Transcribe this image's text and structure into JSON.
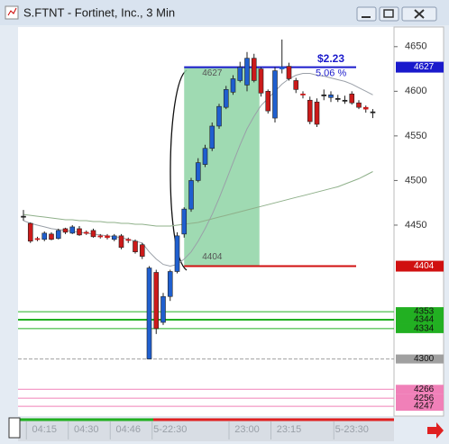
{
  "window_title": "S.FTNT - Fortinet, Inc., 3 Min",
  "chart_data": {
    "type": "candlestick",
    "categories": [
      null,
      null,
      null,
      "04:15",
      null,
      null,
      null,
      null,
      null,
      "04:30",
      null,
      null,
      null,
      null,
      null,
      "04:46",
      null,
      null,
      null,
      null,
      null,
      "5-22:30",
      null,
      null,
      null,
      null,
      null,
      null,
      null,
      null,
      null,
      null,
      "23:00",
      null,
      null,
      null,
      null,
      null,
      "23:15",
      null,
      null,
      null,
      null,
      null,
      null,
      null,
      null,
      "5-23:30",
      null,
      null,
      null
    ],
    "open": [
      4460,
      4452,
      4435,
      4434,
      4440,
      4435,
      4446,
      4441,
      4446,
      4442,
      4444,
      4438,
      4438,
      4434,
      4438,
      4434,
      4432,
      4428,
      4300,
      4397,
      4341,
      4370,
      4398,
      4440,
      4468,
      4500,
      4518,
      4536,
      4561,
      4582,
      4599,
      4612,
      4607,
      4637,
      4625,
      4600,
      4570,
      4625,
      4628,
      4612,
      4597,
      4590,
      4588,
      4596,
      4593,
      4592,
      4590,
      4597,
      4587,
      4582,
      4577
    ],
    "high": [
      4467,
      4453,
      4437,
      4443,
      4442,
      4446,
      4447,
      4450,
      4449,
      4444,
      4446,
      4440,
      4440,
      4440,
      4440,
      4436,
      4434,
      4430,
      4404,
      4400,
      4374,
      4400,
      4442,
      4470,
      4503,
      4525,
      4540,
      4565,
      4586,
      4606,
      4618,
      4633,
      4644,
      4642,
      4627,
      4602,
      4627,
      4658,
      4632,
      4615,
      4600,
      4594,
      4592,
      4602,
      4600,
      4596,
      4595,
      4600,
      4590,
      4584,
      4580
    ],
    "low": [
      4455,
      4430,
      4432,
      4432,
      4433,
      4434,
      4440,
      4440,
      4438,
      4439,
      4436,
      4435,
      4434,
      4432,
      4423,
      4430,
      4418,
      4412,
      4300,
      4328,
      4338,
      4365,
      4396,
      4436,
      4465,
      4498,
      4515,
      4533,
      4558,
      4580,
      4596,
      4610,
      4600,
      4610,
      4594,
      4575,
      4565,
      4620,
      4612,
      4598,
      4592,
      4563,
      4560,
      4590,
      4588,
      4588,
      4586,
      4585,
      4580,
      4576,
      4570
    ],
    "close": [
      4460,
      4432,
      4434,
      4441,
      4434,
      4444,
      4442,
      4448,
      4439,
      4441,
      4437,
      4437,
      4436,
      4438,
      4425,
      4433,
      4420,
      4415,
      4402,
      4334,
      4370,
      4398,
      4438,
      4468,
      4500,
      4520,
      4536,
      4561,
      4583,
      4602,
      4614,
      4627,
      4637,
      4612,
      4598,
      4578,
      4623,
      4627,
      4614,
      4602,
      4596,
      4566,
      4563,
      4596,
      4596,
      4592,
      4590,
      4587,
      4582,
      4580,
      4577
    ],
    "up_color": "#1f5fcf",
    "down_color": "#cc1a1a",
    "doji_color": "#202020",
    "series": [
      {
        "color": "#9aa0a8",
        "values": [
          4455,
          4452,
          4450,
          4448,
          4446,
          4445,
          4444,
          4443,
          4442,
          4441,
          4440,
          4439,
          4438,
          4437,
          4436,
          4434,
          4432,
          4430,
          4420,
          4412,
          4406,
          4404,
          4406,
          4412,
          4420,
          4432,
          4446,
          4462,
          4480,
          4500,
          4520,
          4540,
          4558,
          4572,
          4584,
          4592,
          4600,
          4608,
          4614,
          4618,
          4620,
          4620,
          4618,
          4617,
          4615,
          4613,
          4611,
          4608,
          4604,
          4600,
          4596
        ]
      },
      {
        "color": "#8fb08a",
        "values": [
          4462,
          4461,
          4460,
          4459,
          4458,
          4457,
          4456,
          4456,
          4455,
          4455,
          4454,
          4454,
          4453,
          4453,
          4452,
          4452,
          4451,
          4451,
          4450,
          4449,
          4449,
          4449,
          4450,
          4451,
          4452,
          4453,
          4455,
          4457,
          4459,
          4461,
          4463,
          4465,
          4467,
          4469,
          4471,
          4473,
          4475,
          4477,
          4479,
          4481,
          4483,
          4485,
          4487,
          4489,
          4491,
          4493,
          4496,
          4499,
          4502,
          4506,
          4510
        ]
      }
    ],
    "ylim": [
      4236,
      4672
    ],
    "yticks": [
      4650,
      4600,
      4550,
      4500,
      4450
    ],
    "measurement": {
      "start": 4404,
      "end": 4627,
      "change_label": "$2.23",
      "percent_label": "5.06 %",
      "start_color": "#d01010",
      "end_color": "#1a1acc",
      "fill": "#8ed3a5"
    },
    "levels": [
      {
        "value": 4353,
        "color": "#22b022"
      },
      {
        "value": 4344,
        "color": "#22b022"
      },
      {
        "value": 4334,
        "color": "#22b022"
      },
      {
        "value": 4300,
        "color": "#a0a0a0"
      },
      {
        "value": 4266,
        "color": "#f080b8"
      },
      {
        "value": 4256,
        "color": "#f080b8"
      },
      {
        "value": 4247,
        "color": "#f080b8"
      }
    ]
  }
}
